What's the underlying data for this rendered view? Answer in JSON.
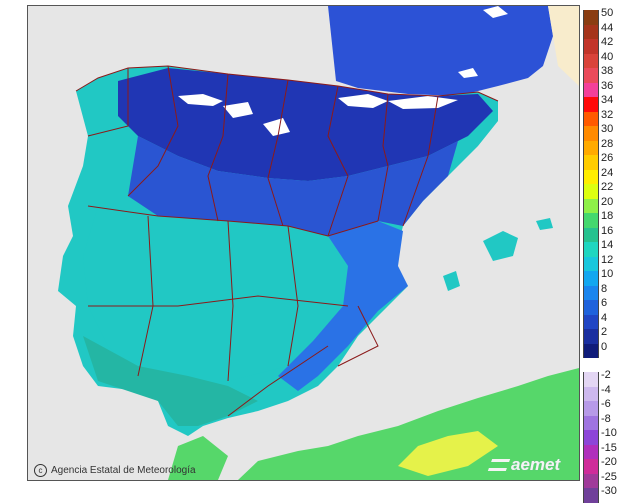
{
  "credit": {
    "text": "Agencia Estatal de Meteorología",
    "icon": "copyright-icon"
  },
  "brand": {
    "text": "aemet"
  },
  "legend": {
    "positive": [
      {
        "label": "50",
        "color": "#8a3d12"
      },
      {
        "label": "44",
        "color": "#a5341b"
      },
      {
        "label": "42",
        "color": "#c2352a"
      },
      {
        "label": "40",
        "color": "#d9433a"
      },
      {
        "label": "38",
        "color": "#ea4a5a"
      },
      {
        "label": "36",
        "color": "#f3409a"
      },
      {
        "label": "34",
        "color": "#ff0a0a"
      },
      {
        "label": "32",
        "color": "#ff5a00"
      },
      {
        "label": "30",
        "color": "#ff8a00"
      },
      {
        "label": "28",
        "color": "#ffaa00"
      },
      {
        "label": "26",
        "color": "#ffcc00"
      },
      {
        "label": "24",
        "color": "#ffee00"
      },
      {
        "label": "22",
        "color": "#ddff10"
      },
      {
        "label": "20",
        "color": "#8ef048"
      },
      {
        "label": "18",
        "color": "#44d86e"
      },
      {
        "label": "16",
        "color": "#26c28f"
      },
      {
        "label": "14",
        "color": "#1fd6c0"
      },
      {
        "label": "12",
        "color": "#18c7dd"
      },
      {
        "label": "10",
        "color": "#13a7f0"
      },
      {
        "label": "8",
        "color": "#1a85ee"
      },
      {
        "label": "6",
        "color": "#1f62dc"
      },
      {
        "label": "4",
        "color": "#2045c4"
      },
      {
        "label": "2",
        "color": "#1a2fa0"
      },
      {
        "label": "0",
        "color": "#101c7a"
      }
    ],
    "negative": [
      {
        "label": "-2",
        "color": "#e3d6f3"
      },
      {
        "label": "-4",
        "color": "#cdb8ee"
      },
      {
        "label": "-6",
        "color": "#b79ae8"
      },
      {
        "label": "-8",
        "color": "#9f74e0"
      },
      {
        "label": "-10",
        "color": "#8d45d8"
      },
      {
        "label": "-15",
        "color": "#b02fbc"
      },
      {
        "label": "-20",
        "color": "#cf2c9a"
      },
      {
        "label": "-25",
        "color": "#a03a9a"
      },
      {
        "label": "-30",
        "color": "#70409a"
      }
    ]
  },
  "map": {
    "colors": {
      "sea": "#e6e6e6",
      "north_coast_deep": "#2036b4",
      "north_mid": "#2a55d2",
      "central_cyan": "#21c8c4",
      "southwest_teal": "#24b6a4",
      "southeast_blue": "#2a72e6",
      "snow": "#ffffff",
      "africa_green": "#56d76a",
      "africa_yellow": "#e5f24a",
      "border": "#8b1a1a",
      "france": "#2c52d6",
      "corner_yellow": "#f8eccc"
    }
  }
}
